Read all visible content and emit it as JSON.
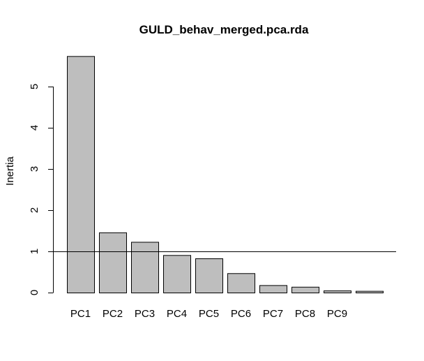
{
  "chart_data": {
    "type": "bar",
    "title": "GULD_behav_merged.pca.rda",
    "xlabel": "",
    "ylabel": "Inertia",
    "categories": [
      "PC1",
      "PC2",
      "PC3",
      "PC4",
      "PC5",
      "PC6",
      "PC7",
      "PC8",
      "PC9",
      ""
    ],
    "values": [
      5.74,
      1.46,
      1.23,
      0.91,
      0.83,
      0.47,
      0.18,
      0.14,
      0.05,
      0.04
    ],
    "yticks": [
      "0",
      "1",
      "2",
      "3",
      "4",
      "5"
    ],
    "ylim": [
      0,
      5.8
    ],
    "reference_line": 1,
    "grid": false,
    "legend": "none",
    "bar_color": "#bebebe",
    "border_color": "#000000"
  }
}
